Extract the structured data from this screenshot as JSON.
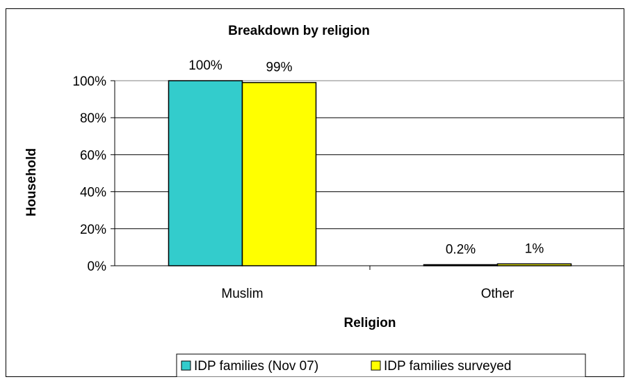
{
  "chart_data": {
    "type": "bar",
    "title": "Breakdown by religion",
    "xlabel": "Religion",
    "ylabel": "Household",
    "categories": [
      "Muslim",
      "Other"
    ],
    "series": [
      {
        "name": "IDP families (Nov 07)",
        "values": [
          100,
          0.2
        ],
        "labels": [
          "100%",
          "0.2%"
        ],
        "color": "#33CCCC"
      },
      {
        "name": "IDP families surveyed",
        "values": [
          99,
          1
        ],
        "labels": [
          "99%",
          "1%"
        ],
        "color": "#FFFF00"
      }
    ],
    "ylim": [
      0,
      100
    ],
    "yticks": [
      0,
      20,
      40,
      60,
      80,
      100
    ],
    "ytick_labels": [
      "0%",
      "20%",
      "40%",
      "60%",
      "80%",
      "100%"
    ],
    "grid": true,
    "legend_position": "bottom"
  }
}
